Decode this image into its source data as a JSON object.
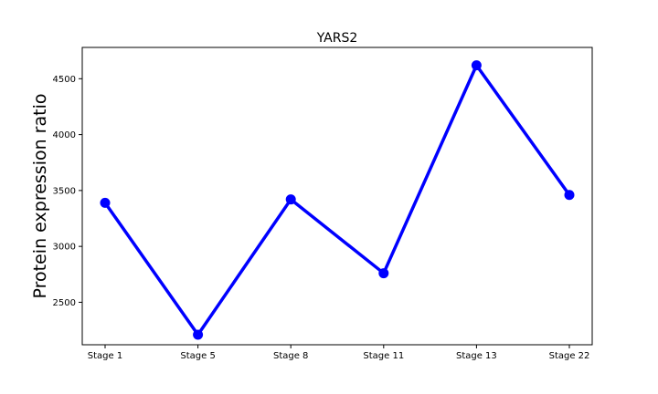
{
  "chart_data": {
    "type": "line",
    "title": "YARS2",
    "xlabel": "",
    "ylabel": "Protein expression ratio",
    "categories": [
      "Stage 1",
      "Stage 5",
      "Stage 8",
      "Stage 11",
      "Stage 13",
      "Stage 22"
    ],
    "series": [
      {
        "values": [
          3390,
          2210,
          3420,
          2760,
          4620,
          3460
        ]
      }
    ],
    "yticks": [
      2500,
      3000,
      3500,
      4000,
      4500
    ],
    "ylim": [
      2120,
      4780
    ],
    "grid": false,
    "line_color": "#0000ff",
    "marker": "circle"
  }
}
